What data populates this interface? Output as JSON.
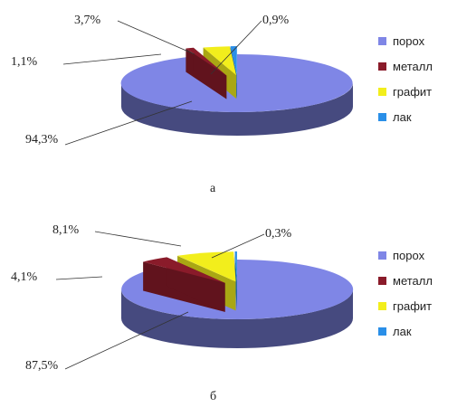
{
  "chart_data": [
    {
      "type": "pie",
      "caption": "а",
      "categories": [
        "порох",
        "металл",
        "графит",
        "лак"
      ],
      "values": [
        94.3,
        1.1,
        3.7,
        0.9
      ],
      "labels": [
        "94,3%",
        "1,1%",
        "3,7%",
        "0,9%"
      ],
      "colors": [
        "#7f86e6",
        "#8a1b2a",
        "#f2ee1c",
        "#2a8fe8"
      ],
      "exploded": [
        false,
        true,
        true,
        true
      ],
      "legend": "right"
    },
    {
      "type": "pie",
      "caption": "б",
      "categories": [
        "порох",
        "металл",
        "графит",
        "лак"
      ],
      "values": [
        87.5,
        4.1,
        8.1,
        0.3
      ],
      "labels": [
        "87,5%",
        "4,1%",
        "8,1%",
        "0,3%"
      ],
      "colors": [
        "#7f86e6",
        "#8a1b2a",
        "#f2ee1c",
        "#2a8fe8"
      ],
      "exploded": [
        false,
        true,
        true,
        true
      ],
      "legend": "right"
    }
  ]
}
